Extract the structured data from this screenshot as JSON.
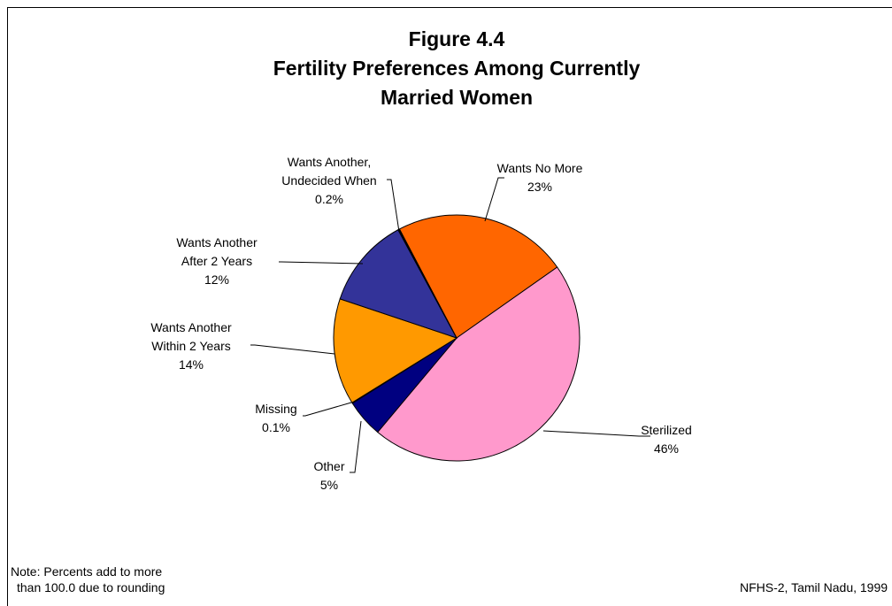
{
  "chart_data": {
    "type": "pie",
    "title": [
      "Figure 4.4",
      "Fertility Preferences Among Currently",
      "Married Women"
    ],
    "categories": [
      "Wants No More",
      "Sterilized",
      "Other",
      "Missing",
      "Wants Another\nWithin 2 Years",
      "Wants Another\nAfter 2 Years",
      "Wants Another,\nUndecided When"
    ],
    "values": [
      23,
      46,
      5,
      0.1,
      14,
      12,
      0.2
    ],
    "value_labels": [
      "23%",
      "46%",
      "5%",
      "0.1%",
      "14%",
      "12%",
      "0.2%"
    ],
    "colors": [
      "#ff6600",
      "#ff99cc",
      "#000080",
      "#ff0000",
      "#ff9900",
      "#333399",
      "#000000"
    ],
    "note": [
      "Note: Percents add to more",
      "than 100.0 due to rounding"
    ],
    "source": "NFHS-2, Tamil Nadu, 1999"
  }
}
